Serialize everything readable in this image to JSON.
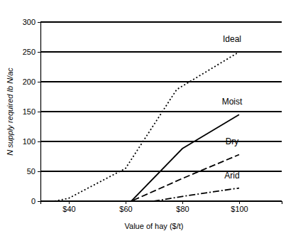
{
  "chart_data": {
    "type": "line",
    "x_label": "Value of hay ($/t)",
    "y_label": "N supply required lb N/ac",
    "xlim": [
      30,
      115
    ],
    "ylim": [
      0,
      300
    ],
    "xticks": [
      {
        "value": 40,
        "label": "$40"
      },
      {
        "value": 60,
        "label": "$60"
      },
      {
        "value": 80,
        "label": "$80"
      },
      {
        "value": 100,
        "label": "$100"
      }
    ],
    "yticks": [
      0,
      50,
      100,
      150,
      200,
      250,
      300
    ],
    "grid": true,
    "series": [
      {
        "name": "Ideal",
        "color": "#000000",
        "line_style": "dotted",
        "x": [
          35,
          40,
          60,
          78,
          100
        ],
        "values": [
          0,
          5,
          55,
          187,
          250
        ]
      },
      {
        "name": "Moist",
        "color": "#000000",
        "line_style": "solid",
        "x": [
          40,
          62,
          80,
          100
        ],
        "values": [
          0,
          0,
          88,
          145
        ]
      },
      {
        "name": "Dry",
        "color": "#000000",
        "line_style": "dashed",
        "x": [
          40,
          62,
          80,
          100
        ],
        "values": [
          0,
          0,
          38,
          78
        ]
      },
      {
        "name": "Arid",
        "color": "#000000",
        "line_style": "dashdot",
        "x": [
          40,
          70,
          80,
          100
        ],
        "values": [
          0,
          0,
          8,
          22
        ]
      }
    ]
  }
}
